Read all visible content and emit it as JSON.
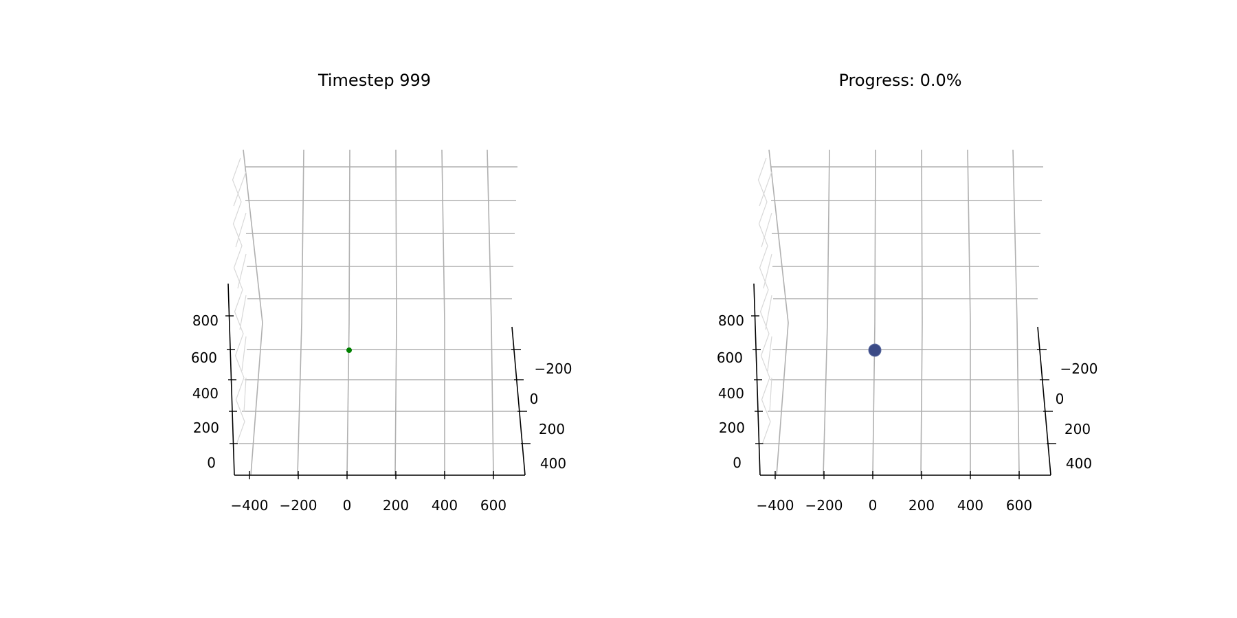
{
  "chart_data": [
    {
      "type": "scatter",
      "title": "Timestep 999",
      "x_ticks": [
        "−400",
        "−200",
        "0",
        "200",
        "400",
        "600"
      ],
      "y_ticks": [
        "−200",
        "0",
        "200",
        "400"
      ],
      "z_ticks": [
        "0",
        "200",
        "400",
        "600",
        "800"
      ],
      "xlim": [
        -460,
        720
      ],
      "ylim": [
        -300,
        460
      ],
      "zlim": [
        -60,
        1300
      ],
      "grid": true,
      "points": [
        {
          "x": 0,
          "y": -200,
          "z": 600,
          "color": "#008000",
          "size": "small"
        }
      ]
    },
    {
      "type": "scatter",
      "title": "Progress: 0.0%",
      "x_ticks": [
        "−400",
        "−200",
        "0",
        "200",
        "400",
        "600"
      ],
      "y_ticks": [
        "−200",
        "0",
        "200",
        "400"
      ],
      "z_ticks": [
        "0",
        "200",
        "400",
        "600",
        "800"
      ],
      "xlim": [
        -460,
        720
      ],
      "ylim": [
        -300,
        460
      ],
      "zlim": [
        -60,
        1300
      ],
      "grid": true,
      "progress": 0.0,
      "points": [
        {
          "x": 0,
          "y": -200,
          "z": 600,
          "color": "#3b4a86",
          "size": "large"
        }
      ]
    }
  ]
}
